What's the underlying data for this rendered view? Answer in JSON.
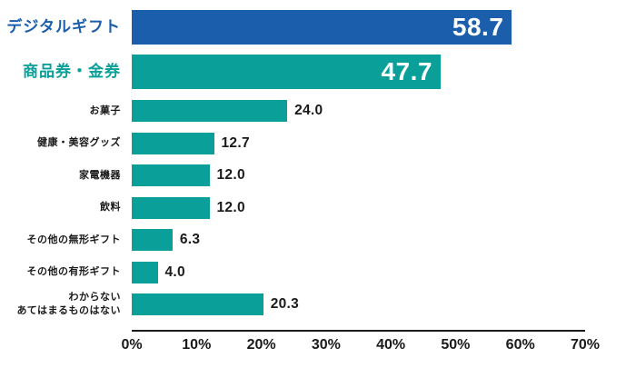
{
  "chart_data": {
    "type": "bar",
    "orientation": "horizontal",
    "title": "",
    "xlabel": "",
    "ylabel": "",
    "xlim": [
      0,
      70
    ],
    "x_ticks": [
      "0%",
      "10%",
      "20%",
      "30%",
      "40%",
      "50%",
      "60%",
      "70%"
    ],
    "grid": false,
    "legend": false,
    "categories": [
      "デジタルギフト",
      "商品券・金券",
      "お菓子",
      "健康・美容グッズ",
      "家電機器",
      "飲料",
      "その他の無形ギフト",
      "その他の有形ギフト",
      "わからない\nあてはまるものはない"
    ],
    "values": [
      58.7,
      47.7,
      24.0,
      12.7,
      12.0,
      12.0,
      6.3,
      4.0,
      20.3
    ],
    "rows": [
      {
        "label": "デジタルギフト",
        "value": 58.7,
        "value_label": "58.7",
        "color": "#1A5EAC",
        "label_color": "#1A5EAC",
        "emphasis": true,
        "value_position": "inside"
      },
      {
        "label": "商品券・金券",
        "value": 47.7,
        "value_label": "47.7",
        "color": "#0AA099",
        "label_color": "#0AA099",
        "emphasis": true,
        "value_position": "inside"
      },
      {
        "label": "お菓子",
        "value": 24.0,
        "value_label": "24.0",
        "color": "#0AA099",
        "label_color": "#1A1A1A",
        "emphasis": false,
        "value_position": "outside"
      },
      {
        "label": "健康・美容グッズ",
        "value": 12.7,
        "value_label": "12.7",
        "color": "#0AA099",
        "label_color": "#1A1A1A",
        "emphasis": false,
        "value_position": "outside"
      },
      {
        "label": "家電機器",
        "value": 12.0,
        "value_label": "12.0",
        "color": "#0AA099",
        "label_color": "#1A1A1A",
        "emphasis": false,
        "value_position": "outside"
      },
      {
        "label": "飲料",
        "value": 12.0,
        "value_label": "12.0",
        "color": "#0AA099",
        "label_color": "#1A1A1A",
        "emphasis": false,
        "value_position": "outside"
      },
      {
        "label": "その他の無形ギフト",
        "value": 6.3,
        "value_label": "6.3",
        "color": "#0AA099",
        "label_color": "#1A1A1A",
        "emphasis": false,
        "value_position": "outside"
      },
      {
        "label": "その他の有形ギフト",
        "value": 4.0,
        "value_label": "4.0",
        "color": "#0AA099",
        "label_color": "#1A1A1A",
        "emphasis": false,
        "value_position": "outside"
      },
      {
        "label": "わからない\nあてはまるものはない",
        "value": 20.3,
        "value_label": "20.3",
        "color": "#0AA099",
        "label_color": "#1A1A1A",
        "emphasis": false,
        "value_position": "outside"
      }
    ],
    "colors": {
      "accent_blue": "#1A5EAC",
      "accent_teal": "#0AA099",
      "text": "#1A1A1A",
      "value_inside_text": "#FFFFFF",
      "axis_line": "#1A1A1A",
      "background": "#FFFFFF"
    }
  }
}
